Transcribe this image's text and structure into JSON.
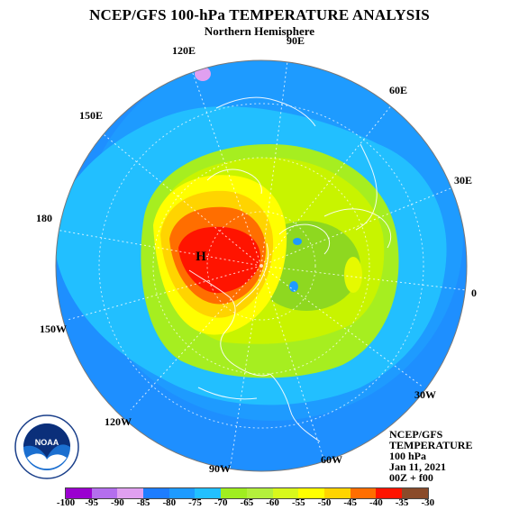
{
  "header": {
    "title": "NCEP/GFS 100-hPa TEMPERATURE ANALYSIS",
    "subtitle": "Northern Hemisphere"
  },
  "map": {
    "projection": "polar stereographic",
    "variable": "temperature",
    "level": "100 hPa",
    "high_marker": "H",
    "longitude_labels": [
      "90E",
      "60E",
      "30E",
      "0",
      "30W",
      "60W",
      "90W",
      "120W",
      "150W",
      "180",
      "150E",
      "120E"
    ]
  },
  "info_block": {
    "model": "NCEP/GFS",
    "field": "TEMPERATURE",
    "level": "100 hPa",
    "date": "Jan 11, 2021",
    "time": "00Z + f00"
  },
  "colorbar": {
    "labels": [
      "-100",
      "-95",
      "-90",
      "-85",
      "-80",
      "-75",
      "-70",
      "-65",
      "-60",
      "-55",
      "-50",
      "-45",
      "-40",
      "-35",
      "-30"
    ],
    "colors": [
      "#9a00d0",
      "#b46eee",
      "#e0a0f0",
      "#1e7dff",
      "#1e9bff",
      "#22c0ff",
      "#a0ee20",
      "#b4f03c",
      "#d8f81c",
      "#ffff00",
      "#ffd400",
      "#ff6e00",
      "#ff1400",
      "#8a4b2a"
    ]
  },
  "logo": {
    "text": "NOAA",
    "ring_text_top": "NATIONAL OCEANIC AND ATMOSPHERIC ADMINISTRATION",
    "ring_text_bottom": "U.S. DEPARTMENT OF COMMERCE"
  }
}
